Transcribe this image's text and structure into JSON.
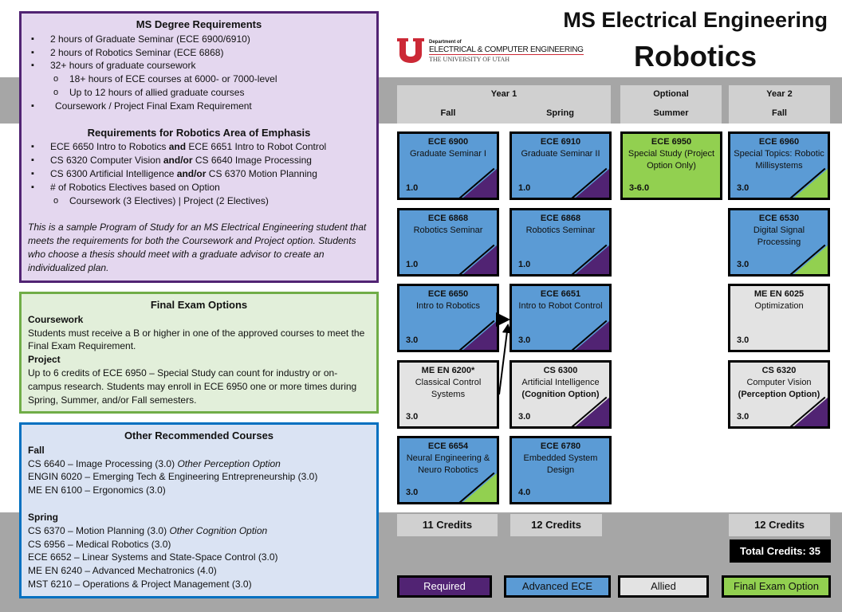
{
  "header": {
    "title": "MS Electrical Engineering",
    "subtitle": "Robotics",
    "logo": {
      "line1": "Department of",
      "line2": "ELECTRICAL & COMPUTER ENGINEERING",
      "line3": "THE UNIVERSITY OF UTAH"
    }
  },
  "requirements": {
    "title": "MS Degree Requirements",
    "items": [
      "2 hours of Graduate Seminar (ECE 6900/6910)",
      "2 hours of Robotics Seminar (ECE 6868)",
      "32+ hours of graduate coursework"
    ],
    "sub_items": [
      "18+ hours of ECE courses at 6000- or 7000-level",
      "Up to 12 hours of allied graduate courses"
    ],
    "final_item": "Coursework / Project Final Exam Requirement",
    "emphasis_title": "Requirements for Robotics Area of Emphasis",
    "emphasis": [
      {
        "a": "ECE 6650 Intro to Robotics ",
        "conj": "and",
        "b": " ECE 6651 Intro to Robot Control"
      },
      {
        "a": "CS 6320 Computer Vision ",
        "conj": "and/or",
        "b": " CS 6640 Image Processing"
      },
      {
        "a": "CS 6300 Artificial Intelligence ",
        "conj": "and/or",
        "b": " CS 6370 Motion Planning"
      }
    ],
    "electives": "# of Robotics Electives based on Option",
    "electives_sub": "Coursework (3 Electives) |  Project (2 Electives)",
    "note": "This is a sample Program of Study for an MS Electrical Engineering student that meets the requirements for both the Coursework and Project option. Students who choose a thesis should meet with a graduate advisor to create an individualized plan."
  },
  "final_exam": {
    "title": "Final Exam Options",
    "coursework_h": "Coursework",
    "coursework": "Students must receive a B or higher in one of the approved courses to meet the Final Exam Requirement.",
    "project_h": "Project",
    "project": "Up to 6 credits of ECE 6950 – Special Study can count for industry or on-campus research. Students may enroll in ECE 6950 one or more times during Spring, Summer, and/or Fall semesters."
  },
  "other": {
    "title": "Other Recommended Courses",
    "fall_h": "Fall",
    "fall": [
      {
        "t": "CS 6640 – Image Processing (3.0) ",
        "i": "Other Perception Option"
      },
      {
        "t": "ENGIN 6020 – Emerging Tech & Engineering Entrepreneurship (3.0)",
        "i": ""
      },
      {
        "t": "ME EN 6100 –  Ergonomics (3.0)",
        "i": ""
      }
    ],
    "spring_h": "Spring",
    "spring": [
      {
        "t": "CS 6370 – Motion Planning (3.0) ",
        "i": "Other Cognition Option"
      },
      {
        "t": "CS 6956 – Medical Robotics (3.0)",
        "i": ""
      },
      {
        "t": "ECE 6652 – Linear Systems and State-Space Control (3.0)",
        "i": ""
      },
      {
        "t": "ME EN 6240 – Advanced Mechatronics (4.0)",
        "i": ""
      },
      {
        "t": "MST 6210 – Operations & Project Management (3.0)",
        "i": ""
      }
    ]
  },
  "columns": {
    "year1": "Year 1",
    "fall": "Fall",
    "spring": "Spring",
    "optional": "Optional",
    "summer": "Summer",
    "year2": "Year 2",
    "fall2": "Fall"
  },
  "colors": {
    "required": "#512373",
    "advanced": "#5b9bd5",
    "allied": "#e3e3e3",
    "final": "#92d050"
  },
  "courses": [
    {
      "col": 0,
      "row": 0,
      "code": "ECE 6900",
      "name": "Graduate Seminar I",
      "bold": "",
      "credits": "1.0",
      "type": "advanced",
      "corner": "required"
    },
    {
      "col": 0,
      "row": 1,
      "code": "ECE 6868",
      "name": "Robotics Seminar",
      "bold": "",
      "credits": "1.0",
      "type": "advanced",
      "corner": "required"
    },
    {
      "col": 0,
      "row": 2,
      "code": "ECE 6650",
      "name": "Intro to Robotics",
      "bold": "",
      "credits": "3.0",
      "type": "advanced",
      "corner": "required"
    },
    {
      "col": 0,
      "row": 3,
      "code": "ME EN 6200*",
      "name": "Classical Control Systems",
      "bold": "",
      "credits": "3.0",
      "type": "allied",
      "corner": ""
    },
    {
      "col": 0,
      "row": 4,
      "code": "ECE 6654",
      "name": "Neural Engineering & Neuro Robotics",
      "bold": "",
      "credits": "3.0",
      "type": "advanced",
      "corner": "final"
    },
    {
      "col": 1,
      "row": 0,
      "code": "ECE 6910",
      "name": "Graduate Seminar II",
      "bold": "",
      "credits": "1.0",
      "type": "advanced",
      "corner": "required"
    },
    {
      "col": 1,
      "row": 1,
      "code": "ECE 6868",
      "name": "Robotics Seminar",
      "bold": "",
      "credits": "1.0",
      "type": "advanced",
      "corner": "required"
    },
    {
      "col": 1,
      "row": 2,
      "code": "ECE 6651",
      "name": "Intro to Robot Control",
      "bold": "",
      "credits": "3.0",
      "type": "advanced",
      "corner": "required"
    },
    {
      "col": 1,
      "row": 3,
      "code": "CS 6300",
      "name": "Artificial Intelligence",
      "bold": "(Cognition Option)",
      "credits": "3.0",
      "type": "allied",
      "corner": "required"
    },
    {
      "col": 1,
      "row": 4,
      "code": "ECE 6780",
      "name": "Embedded System Design",
      "bold": "",
      "credits": "4.0",
      "type": "advanced",
      "corner": ""
    },
    {
      "col": 2,
      "row": 0,
      "code": "ECE 6950",
      "name": "Special Study (Project Option Only)",
      "bold": "",
      "credits": "3-6.0",
      "type": "final",
      "corner": ""
    },
    {
      "col": 3,
      "row": 0,
      "code": "ECE 6960",
      "name": "Special Topics: Robotic Millisystems",
      "bold": "",
      "credits": "3.0",
      "type": "advanced",
      "corner": "final"
    },
    {
      "col": 3,
      "row": 1,
      "code": "ECE 6530",
      "name": "Digital Signal Processing",
      "bold": "",
      "credits": "3.0",
      "type": "advanced",
      "corner": "final"
    },
    {
      "col": 3,
      "row": 2,
      "code": "ME EN 6025",
      "name": "Optimization",
      "bold": "",
      "credits": "3.0",
      "type": "allied",
      "corner": ""
    },
    {
      "col": 3,
      "row": 3,
      "code": "CS 6320",
      "name": "Computer Vision",
      "bold": "(Perception Option)",
      "credits": "3.0",
      "type": "allied",
      "corner": "required"
    }
  ],
  "credits": {
    "fall1": "11 Credits",
    "spring1": "12 Credits",
    "fall2": "12 Credits",
    "total": "Total Credits: 35"
  },
  "legend": {
    "required": "Required",
    "advanced": "Advanced ECE",
    "allied": "Allied",
    "final": "Final Exam Option"
  }
}
